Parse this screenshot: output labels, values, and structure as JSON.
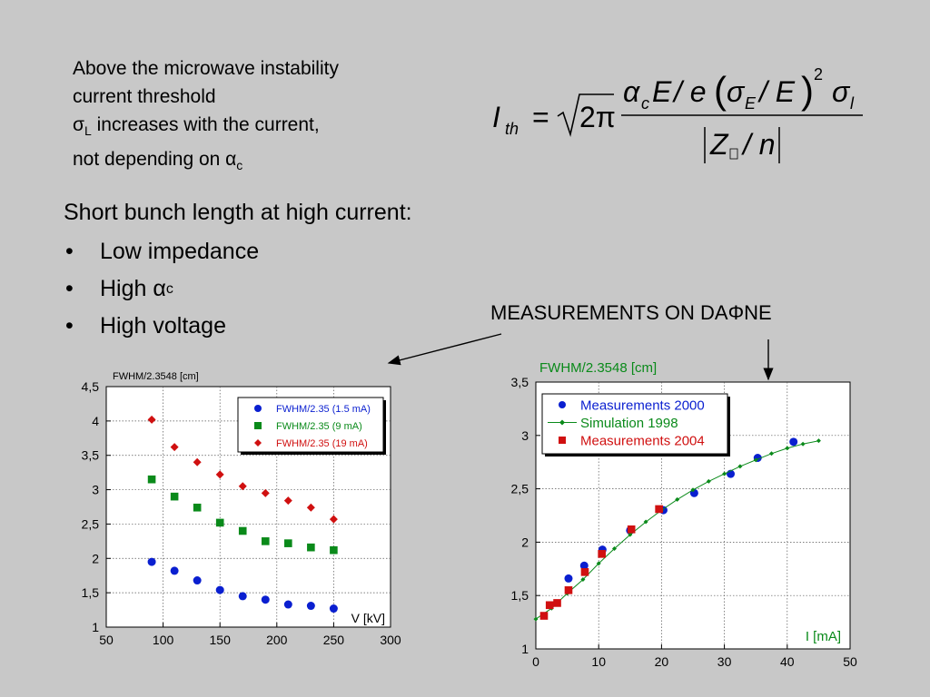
{
  "intro": {
    "line1": "Above the microwave instability",
    "line2": "current threshold",
    "line3_sym": "σ",
    "line3_sub": "L",
    "line3_rest": " increases with the current,",
    "line4_pre": "not depending on ",
    "line4_sym": "α",
    "line4_sub": "c"
  },
  "formula": {
    "lhs": "I",
    "lhs_sub": "th",
    "equals": "=",
    "sqrt_arg": "2π",
    "numerator_alpha": "α",
    "numerator_alpha_sub": "c",
    "numerator_E": "E",
    "numerator_e": "/ e",
    "sigma_E": "σ",
    "sigma_E_sub": "E",
    "slash_E": "/ E",
    "power": "2",
    "sigma_l": "σ",
    "sigma_l_sub": "l",
    "denominator_Z": "Z",
    "denominator_n": "/ n"
  },
  "bullets": {
    "heading": "Short bunch length at high current:",
    "items": [
      {
        "bullet": "•",
        "text": "Low impedance",
        "sym": "",
        "sub": ""
      },
      {
        "bullet": "•",
        "text": "High ",
        "sym": "α",
        "sub": "c"
      },
      {
        "bullet": "•",
        "text": "High voltage",
        "sym": "",
        "sub": ""
      }
    ]
  },
  "measurements_title": {
    "pre": "MEASUREMENTS ON DA",
    "phi": "Φ",
    "post": "NE"
  },
  "chart_data": [
    {
      "type": "scatter",
      "title": "",
      "ylabel": "FWHM/2.3548 [cm]",
      "xlabel": "V [kV]",
      "xlim": [
        50,
        300
      ],
      "ylim": [
        1,
        4.5
      ],
      "xticks": [
        "50",
        "100",
        "150",
        "200",
        "250",
        "300"
      ],
      "yticks": [
        "1",
        "1,5",
        "2",
        "2,5",
        "3",
        "3,5",
        "4",
        "4,5"
      ],
      "grid": true,
      "legend_position": "top-right",
      "series": [
        {
          "name": "FWHM/2.35 (1.5 mA)",
          "marker": "circle",
          "color": "#0a1fd0",
          "x": [
            90,
            110,
            130,
            150,
            170,
            190,
            210,
            230,
            250
          ],
          "y": [
            1.95,
            1.82,
            1.68,
            1.54,
            1.45,
            1.4,
            1.33,
            1.31,
            1.27
          ]
        },
        {
          "name": "FWHM/2.35 (9 mA)",
          "marker": "square",
          "color": "#0a8a1a",
          "x": [
            90,
            110,
            130,
            150,
            170,
            190,
            210,
            230,
            250
          ],
          "y": [
            3.15,
            2.9,
            2.74,
            2.52,
            2.4,
            2.25,
            2.22,
            2.16,
            2.12
          ]
        },
        {
          "name": "FWHM/2.35 (19 mA)",
          "marker": "diamond",
          "color": "#d01010",
          "x": [
            90,
            110,
            130,
            150,
            170,
            190,
            210,
            230,
            250
          ],
          "y": [
            4.02,
            3.62,
            3.4,
            3.22,
            3.05,
            2.95,
            2.84,
            2.74,
            2.57
          ]
        }
      ]
    },
    {
      "type": "scatter",
      "title": "",
      "ylabel": "FWHM/2.3548 [cm]",
      "xlabel": "I [mA]",
      "xlim": [
        0,
        50
      ],
      "ylim": [
        1,
        3.5
      ],
      "xticks": [
        "0",
        "10",
        "20",
        "30",
        "40",
        "50"
      ],
      "yticks": [
        "1",
        "1,5",
        "2",
        "2,5",
        "3",
        "3,5"
      ],
      "grid": true,
      "legend_position": "top-left",
      "series": [
        {
          "name": "Measurements 2000",
          "marker": "circle",
          "color": "#0a1fd0",
          "x": [
            5.2,
            7.7,
            10.6,
            15.0,
            20.3,
            25.2,
            31.0,
            35.3,
            41.0
          ],
          "y": [
            1.66,
            1.78,
            1.93,
            2.11,
            2.3,
            2.46,
            2.64,
            2.79,
            2.94
          ]
        },
        {
          "name": "Simulation 1998",
          "marker": "small-diamond-line",
          "color": "#0a8a1a",
          "x": [
            0,
            2.5,
            5,
            7.5,
            10,
            12.5,
            15,
            17.5,
            20,
            22.5,
            25,
            27.5,
            30,
            32.5,
            35,
            37.5,
            40,
            42.5,
            45
          ],
          "y": [
            1.28,
            1.38,
            1.52,
            1.65,
            1.8,
            1.94,
            2.07,
            2.19,
            2.3,
            2.4,
            2.49,
            2.57,
            2.64,
            2.71,
            2.77,
            2.83,
            2.88,
            2.92,
            2.95
          ]
        },
        {
          "name": "Measurements 2004",
          "marker": "square",
          "color": "#d01010",
          "x": [
            1.3,
            2.2,
            3.4,
            5.2,
            7.8,
            10.5,
            15.2,
            19.6
          ],
          "y": [
            1.31,
            1.41,
            1.43,
            1.55,
            1.72,
            1.89,
            2.12,
            2.31
          ]
        }
      ]
    }
  ]
}
